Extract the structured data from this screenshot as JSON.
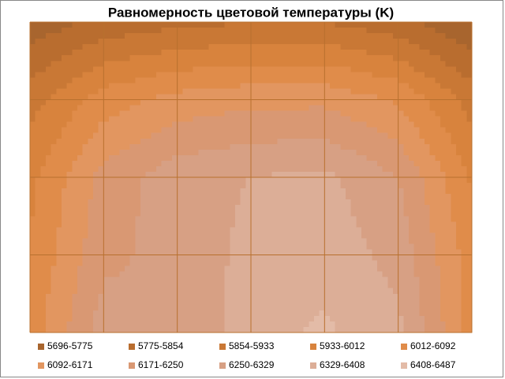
{
  "chart_data": {
    "type": "contour",
    "title": "Равномерность цветовой температуры (K)",
    "levels": [
      5696,
      5775,
      5854,
      5933,
      6012,
      6092,
      6171,
      6250,
      6329,
      6408,
      6487
    ],
    "series": [
      {
        "name": "5696-5775",
        "color": "#a8652e"
      },
      {
        "name": "5775-5854",
        "color": "#b96d2f"
      },
      {
        "name": "5854-5933",
        "color": "#c97835"
      },
      {
        "name": "5933-6012",
        "color": "#d8833d"
      },
      {
        "name": "6012-6092",
        "color": "#e08c4a"
      },
      {
        "name": "6092-6171",
        "color": "#e29660"
      },
      {
        "name": "6171-6250",
        "color": "#d99873"
      },
      {
        "name": "6250-6329",
        "color": "#d7a084"
      },
      {
        "name": "6329-6408",
        "color": "#dcae97"
      },
      {
        "name": "6408-6487",
        "color": "#e3bba7"
      }
    ],
    "z": [
      [
        5720,
        5800,
        5830,
        5850,
        5850,
        5800,
        5700
      ],
      [
        5900,
        6050,
        6120,
        6150,
        6150,
        6080,
        5900
      ],
      [
        5990,
        6200,
        6300,
        6330,
        6350,
        6250,
        6000
      ],
      [
        6020,
        6230,
        6280,
        6350,
        6380,
        6300,
        6050
      ],
      [
        6050,
        6290,
        6250,
        6380,
        6420,
        6350,
        6060
      ]
    ]
  }
}
